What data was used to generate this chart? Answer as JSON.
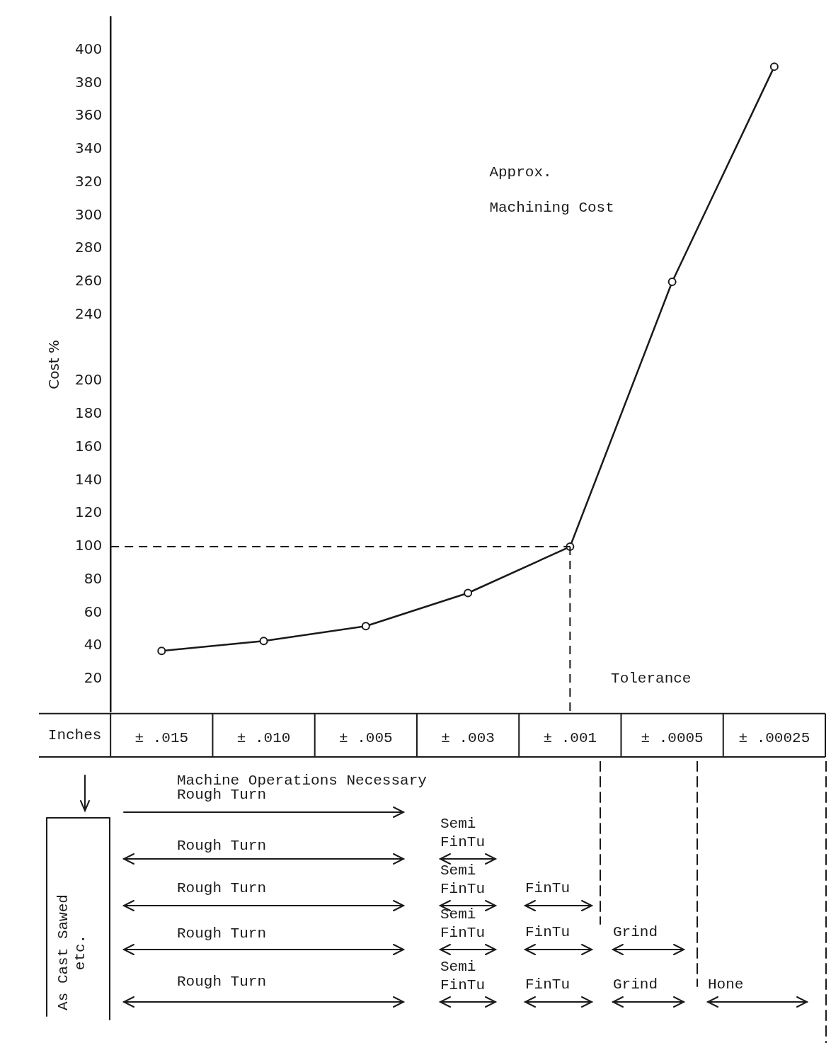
{
  "chart_data": {
    "type": "line",
    "ylabel": "Cost %",
    "xlabel": "Inches",
    "categories": [
      "± .015",
      "± .010",
      "± .005",
      "± .003",
      "± .001",
      "± .0005",
      "± .00025"
    ],
    "series": [
      {
        "color": "#1a1a1a",
        "values": [
          37,
          43,
          52,
          72,
          100,
          260,
          390
        ]
      }
    ],
    "ylim": [
      0,
      420
    ],
    "yticks": [
      20,
      40,
      60,
      80,
      100,
      120,
      140,
      160,
      180,
      200,
      240,
      260,
      280,
      300,
      320,
      340,
      360,
      380,
      400
    ],
    "grid": false,
    "legend": false,
    "marker": "circle",
    "line_style": "solid",
    "ref_lines": [
      {
        "axis": "y",
        "value": 100,
        "line_style": "dashed",
        "color": "#1a1a1a"
      },
      {
        "axis": "x",
        "value": "± .001",
        "line_style": "dashed",
        "color": "#1a1a1a"
      }
    ],
    "annotations": [
      "Approx. Machining Cost",
      "Tolerance",
      "Machine Operations Necessary",
      "As Cast Sawed etc.",
      "Rough Turn",
      "Rough Turn",
      "Semi FinTu",
      "Rough Turn",
      "Semi FinTu",
      "FinTu",
      "Rough Turn",
      "Semi FinTu",
      "FinTu",
      "Grind",
      "Rough Turn",
      "Semi FinTu",
      "FinTu",
      "Grind",
      "Hone"
    ]
  }
}
